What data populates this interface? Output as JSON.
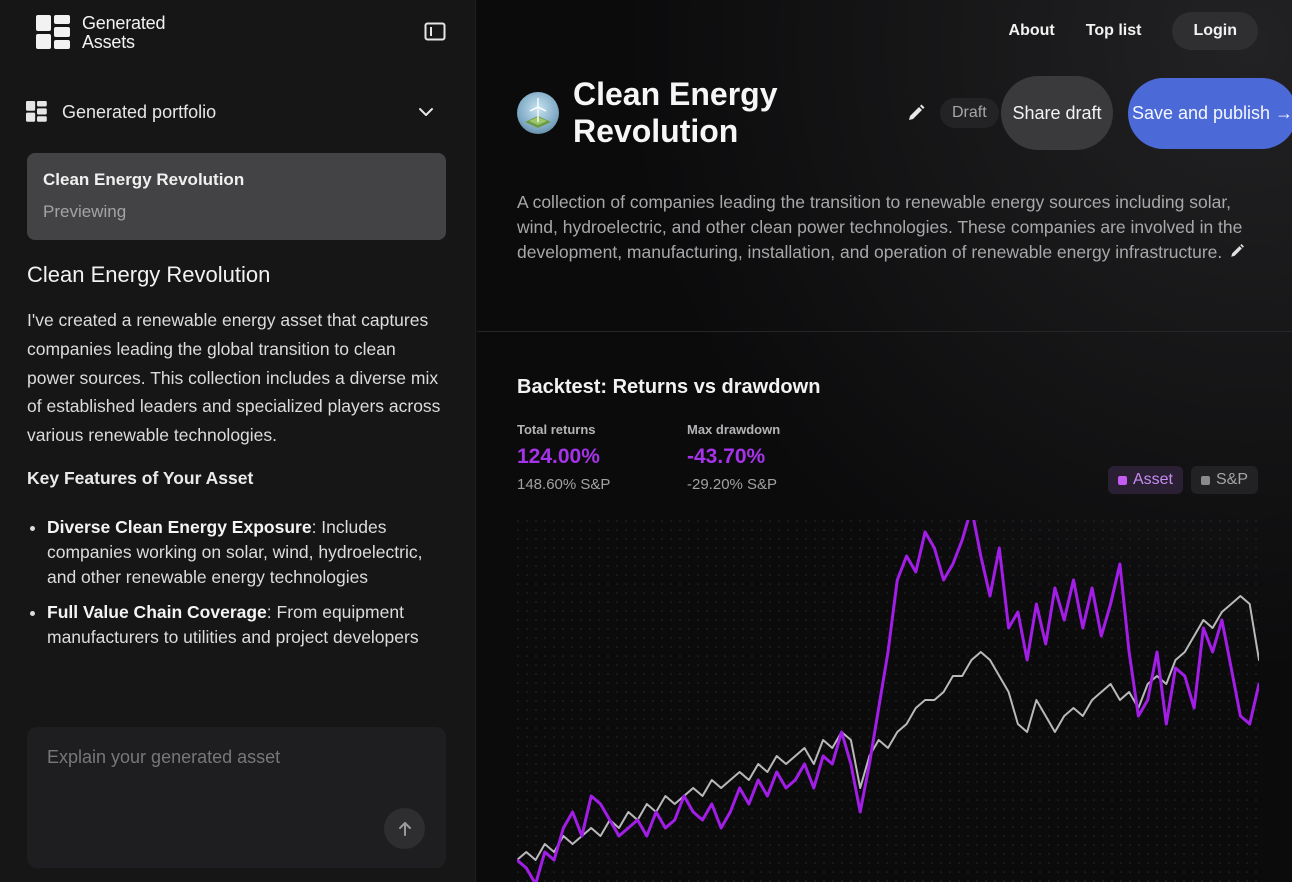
{
  "brand": {
    "line1": "Generated",
    "line2": "Assets"
  },
  "sidebar": {
    "portfolio_label": "Generated portfolio",
    "preview_card": {
      "title": "Clean Energy Revolution",
      "status": "Previewing"
    },
    "chat": {
      "heading": "Clean Energy Revolution",
      "intro": "I've created a renewable energy asset that captures companies leading the global transition to clean power sources. This collection includes a diverse mix of established leaders and specialized players across various renewable technologies.",
      "features_heading": "Key Features of Your Asset",
      "features": [
        {
          "title": "Diverse Clean Energy Exposure",
          "text": ": Includes companies working on solar, wind, hydroelectric, and other renewable energy technologies"
        },
        {
          "title": "Full Value Chain Coverage",
          "text": ": From equipment manufacturers to utilities and project developers"
        }
      ]
    },
    "input_placeholder": "Explain your generated asset"
  },
  "nav": {
    "about": "About",
    "top_list": "Top list",
    "login": "Login"
  },
  "asset": {
    "title": "Clean Energy Revolution",
    "badge": "Draft",
    "share_label": "Share draft",
    "publish_label": "Save and publish →",
    "description": "A collection of companies leading the transition to renewable energy sources including solar, wind, hydroelectric, and other clean power technologies. These companies are involved in the development, manufacturing, installation, and operation of renewable energy infrastructure."
  },
  "backtest": {
    "title": "Backtest: Returns vs drawdown",
    "total_returns": {
      "label": "Total returns",
      "value": "124.00%",
      "sp": "148.60% S&P"
    },
    "max_drawdown": {
      "label": "Max drawdown",
      "value": "-43.70%",
      "sp": "-29.20% S&P"
    },
    "legend": {
      "asset": "Asset",
      "sp": "S&P"
    }
  },
  "colors": {
    "asset": "#a21ee6",
    "sp": "#b9b9bb",
    "accent": "#4b6ad8"
  },
  "chart_data": {
    "type": "line",
    "x": [
      0,
      1,
      2,
      3,
      4,
      5,
      6,
      7,
      8,
      9,
      10,
      11,
      12,
      13,
      14,
      15,
      16,
      17,
      18,
      19,
      20,
      21,
      22,
      23,
      24,
      25,
      26,
      27,
      28,
      29,
      30,
      31,
      32,
      33,
      34,
      35,
      36,
      37,
      38,
      39,
      40,
      41,
      42,
      43,
      44,
      45,
      46,
      47,
      48,
      49,
      50,
      51,
      52,
      53,
      54,
      55,
      56,
      57,
      58,
      59,
      60,
      61,
      62,
      63,
      64,
      65,
      66,
      67,
      68,
      69,
      70,
      71,
      72,
      73,
      74,
      75,
      76,
      77,
      78,
      79,
      80
    ],
    "ylim": [
      -0.2,
      4.2
    ],
    "grid": false,
    "legend": "top-right",
    "series": [
      {
        "name": "Asset",
        "values": [
          0.0,
          -0.1,
          -0.3,
          0.1,
          0.0,
          0.4,
          0.6,
          0.3,
          0.8,
          0.7,
          0.5,
          0.3,
          0.4,
          0.5,
          0.3,
          0.6,
          0.4,
          0.5,
          0.8,
          0.6,
          0.5,
          0.7,
          0.4,
          0.6,
          0.9,
          0.7,
          1.0,
          0.8,
          1.1,
          0.9,
          1.0,
          1.2,
          0.9,
          1.3,
          1.2,
          1.6,
          1.2,
          0.6,
          1.2,
          1.9,
          2.6,
          3.5,
          3.8,
          3.6,
          4.1,
          3.9,
          3.5,
          3.7,
          4.0,
          4.4,
          3.8,
          3.3,
          3.9,
          2.9,
          3.1,
          2.5,
          3.2,
          2.7,
          3.4,
          3.0,
          3.5,
          2.9,
          3.4,
          2.8,
          3.2,
          3.7,
          2.6,
          1.8,
          2.0,
          2.6,
          1.7,
          2.4,
          2.3,
          1.9,
          2.9,
          2.6,
          3.0,
          2.4,
          1.8,
          1.7,
          2.2
        ]
      },
      {
        "name": "S&P",
        "values": [
          0.0,
          0.1,
          0.0,
          0.2,
          0.1,
          0.3,
          0.2,
          0.3,
          0.4,
          0.3,
          0.5,
          0.4,
          0.6,
          0.5,
          0.7,
          0.6,
          0.8,
          0.7,
          0.8,
          0.9,
          0.8,
          1.0,
          0.9,
          1.0,
          1.1,
          1.0,
          1.2,
          1.1,
          1.3,
          1.2,
          1.3,
          1.4,
          1.2,
          1.5,
          1.4,
          1.6,
          1.5,
          0.9,
          1.3,
          1.5,
          1.4,
          1.6,
          1.7,
          1.9,
          2.0,
          2.0,
          2.1,
          2.3,
          2.3,
          2.5,
          2.6,
          2.5,
          2.3,
          2.1,
          1.7,
          1.6,
          2.0,
          1.8,
          1.6,
          1.8,
          1.9,
          1.8,
          2.0,
          2.1,
          2.2,
          2.0,
          2.1,
          1.9,
          2.2,
          2.3,
          2.2,
          2.5,
          2.6,
          2.8,
          3.0,
          2.9,
          3.1,
          3.2,
          3.3,
          3.2,
          2.5
        ]
      }
    ]
  }
}
